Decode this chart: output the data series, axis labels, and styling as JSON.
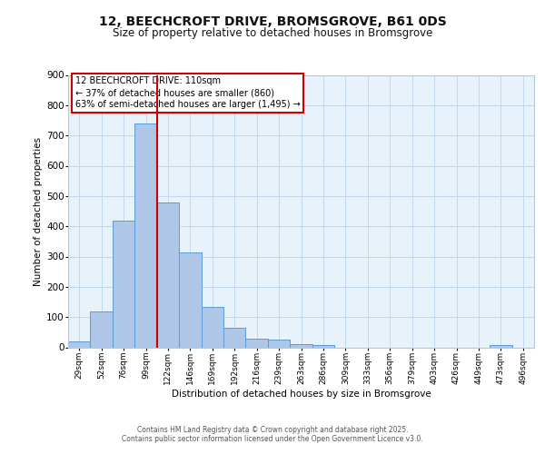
{
  "title_line1": "12, BEECHCROFT DRIVE, BROMSGROVE, B61 0DS",
  "title_line2": "Size of property relative to detached houses in Bromsgrove",
  "xlabel": "Distribution of detached houses by size in Bromsgrove",
  "ylabel": "Number of detached properties",
  "bar_labels": [
    "29sqm",
    "52sqm",
    "76sqm",
    "99sqm",
    "122sqm",
    "146sqm",
    "169sqm",
    "192sqm",
    "216sqm",
    "239sqm",
    "263sqm",
    "286sqm",
    "309sqm",
    "333sqm",
    "356sqm",
    "379sqm",
    "403sqm",
    "426sqm",
    "449sqm",
    "473sqm",
    "496sqm"
  ],
  "bar_values": [
    20,
    120,
    420,
    740,
    480,
    315,
    135,
    65,
    30,
    25,
    12,
    8,
    0,
    0,
    0,
    0,
    0,
    0,
    0,
    8,
    0
  ],
  "bar_color": "#aec6e8",
  "bar_edge_color": "#5b9bd5",
  "vline_x": 3.52,
  "vline_color": "#cc0000",
  "annotation_text": "12 BEECHCROFT DRIVE: 110sqm\n← 37% of detached houses are smaller (860)\n63% of semi-detached houses are larger (1,495) →",
  "annotation_box_color": "#ffffff",
  "annotation_box_edge": "#cc0000",
  "ylim": [
    0,
    900
  ],
  "yticks": [
    0,
    100,
    200,
    300,
    400,
    500,
    600,
    700,
    800,
    900
  ],
  "footer_line1": "Contains HM Land Registry data © Crown copyright and database right 2025.",
  "footer_line2": "Contains public sector information licensed under the Open Government Licence v3.0.",
  "bg_color": "#e8f2fb",
  "fig_bg_color": "#ffffff",
  "title_fontsize": 10,
  "subtitle_fontsize": 8.5,
  "annotation_fontsize": 7.0,
  "ylabel_fontsize": 7.5,
  "xlabel_fontsize": 7.5,
  "tick_fontsize": 6.5,
  "footer_fontsize": 5.5
}
